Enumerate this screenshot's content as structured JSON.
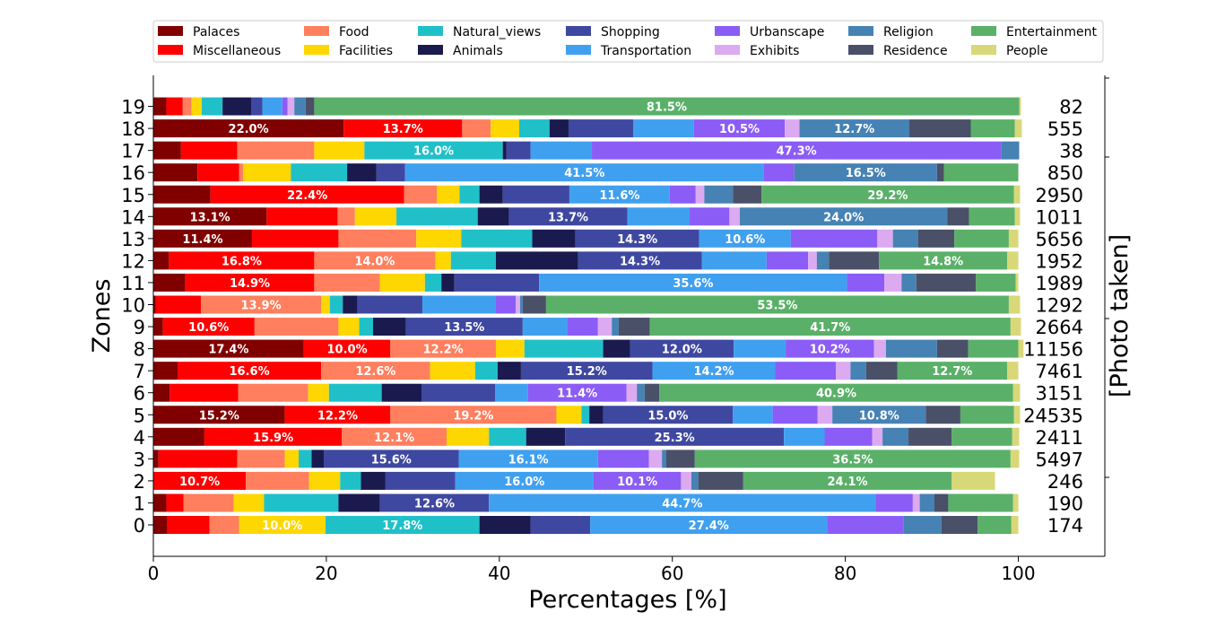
{
  "chart_data": {
    "type": "bar",
    "orientation": "horizontal",
    "stacked": true,
    "xlabel": "Percentages [%]",
    "ylabel": "Zones",
    "right_label": "[Photo taken]",
    "xlim": [
      0,
      110
    ],
    "x_ticks": [
      "0",
      "20",
      "40",
      "60",
      "80",
      "100"
    ],
    "categories": [
      "0",
      "1",
      "2",
      "3",
      "4",
      "5",
      "6",
      "7",
      "8",
      "9",
      "10",
      "11",
      "12",
      "13",
      "14",
      "15",
      "16",
      "17",
      "18",
      "19"
    ],
    "counts": [
      "174",
      "190",
      "246",
      "5497",
      "2411",
      "24535",
      "3151",
      "7461",
      "11156",
      "2664",
      "1292",
      "1989",
      "1952",
      "5656",
      "1011",
      "2950",
      "850",
      "38",
      "555",
      "82"
    ],
    "legend_position": "top",
    "series": [
      {
        "name": "Palaces",
        "color": "#800000",
        "values": [
          1.6,
          1.5,
          0,
          0.6,
          5.9,
          15.2,
          1.9,
          2.8,
          17.4,
          1.1,
          0.3,
          3.7,
          1.8,
          11.4,
          13.1,
          6.6,
          5.1,
          3.2,
          22.0,
          1.5
        ]
      },
      {
        "name": "Miscellaneous",
        "color": "#ff0000",
        "values": [
          4.9,
          2.0,
          10.7,
          9.1,
          15.9,
          12.2,
          7.9,
          16.6,
          10.0,
          10.6,
          5.2,
          14.9,
          16.8,
          10.0,
          8.2,
          22.4,
          4.8,
          6.5,
          13.7,
          1.9
        ]
      },
      {
        "name": "Food",
        "color": "#ff7f5e",
        "values": [
          3.4,
          5.8,
          7.3,
          5.5,
          12.1,
          19.2,
          8.1,
          12.6,
          12.2,
          9.7,
          13.9,
          7.6,
          14.0,
          9.0,
          2.0,
          3.8,
          0.5,
          8.9,
          3.3,
          1.0
        ]
      },
      {
        "name": "Facilities",
        "color": "#ffd700",
        "values": [
          10.0,
          3.5,
          3.6,
          1.6,
          4.9,
          2.9,
          2.4,
          5.2,
          3.3,
          2.4,
          1.0,
          5.2,
          1.8,
          5.2,
          4.8,
          2.6,
          5.5,
          5.8,
          3.3,
          1.2
        ]
      },
      {
        "name": "Natural_views",
        "color": "#20c0c8",
        "values": [
          17.8,
          8.6,
          2.4,
          1.5,
          4.3,
          0.9,
          6.1,
          2.6,
          9.1,
          1.6,
          1.5,
          1.9,
          5.2,
          8.2,
          9.4,
          2.3,
          6.5,
          16.0,
          3.5,
          2.4
        ]
      },
      {
        "name": "Animals",
        "color": "#1a1a4e",
        "values": [
          5.9,
          4.8,
          2.8,
          1.4,
          4.5,
          1.6,
          4.6,
          2.7,
          3.1,
          3.8,
          1.7,
          1.5,
          9.5,
          5.0,
          3.6,
          2.7,
          3.4,
          0.4,
          2.2,
          3.3
        ]
      },
      {
        "name": "Shopping",
        "color": "#3f48a0",
        "values": [
          6.9,
          12.6,
          8.1,
          15.6,
          25.3,
          15.0,
          8.5,
          15.2,
          12.0,
          13.5,
          7.5,
          9.8,
          14.3,
          14.3,
          13.7,
          7.7,
          3.3,
          2.8,
          7.5,
          1.3
        ]
      },
      {
        "name": "Transportation",
        "color": "#40a0f0",
        "values": [
          27.4,
          44.7,
          16.0,
          16.1,
          4.7,
          4.6,
          3.8,
          14.2,
          6.0,
          5.2,
          8.5,
          35.6,
          7.5,
          10.6,
          7.2,
          11.6,
          41.5,
          7.1,
          7.0,
          2.3
        ]
      },
      {
        "name": "Urbanscape",
        "color": "#8b5cf6",
        "values": [
          8.8,
          4.3,
          10.1,
          5.9,
          5.5,
          5.2,
          11.4,
          7.0,
          10.2,
          3.5,
          2.3,
          4.3,
          4.8,
          10.0,
          4.6,
          3.0,
          3.5,
          47.3,
          10.5,
          0.6
        ]
      },
      {
        "name": "Exhibits",
        "color": "#dcaaf0",
        "values": [
          0,
          0.8,
          1.2,
          1.5,
          1.2,
          1.7,
          1.2,
          1.7,
          1.4,
          1.6,
          0.5,
          2.0,
          1.0,
          1.8,
          1.2,
          1.0,
          0,
          0,
          1.7,
          0.8
        ]
      },
      {
        "name": "Religion",
        "color": "#4682b4",
        "values": [
          4.4,
          1.7,
          0.8,
          0.5,
          3.0,
          10.8,
          0.9,
          1.8,
          5.9,
          0.8,
          0.3,
          1.7,
          1.4,
          2.9,
          24.0,
          3.3,
          16.5,
          2.1,
          12.7,
          1.3
        ]
      },
      {
        "name": "Residence",
        "color": "#4a5068",
        "values": [
          4.2,
          1.6,
          5.2,
          3.3,
          5.0,
          4.0,
          1.7,
          3.6,
          3.6,
          3.6,
          2.7,
          6.9,
          5.8,
          4.2,
          2.5,
          3.3,
          0.8,
          0,
          7.1,
          1.0
        ]
      },
      {
        "name": "Entertainment",
        "color": "#5ab068",
        "values": [
          3.9,
          7.5,
          24.1,
          36.5,
          7.0,
          6.2,
          40.9,
          12.7,
          5.8,
          41.7,
          53.5,
          4.6,
          14.8,
          6.3,
          5.3,
          29.2,
          8.6,
          0,
          5.1,
          81.5
        ]
      },
      {
        "name": "People",
        "color": "#d8d878",
        "values": [
          0.8,
          0.6,
          5.0,
          1.0,
          0.8,
          0.7,
          0.8,
          1.3,
          0.6,
          1.2,
          1.3,
          0.3,
          1.3,
          1.1,
          0.6,
          0.7,
          0,
          0,
          0.8,
          0.2
        ]
      }
    ],
    "data_labels": [
      {
        "row": "0",
        "series": "Facilities",
        "text": "10.0%"
      },
      {
        "row": "0",
        "series": "Natural_views",
        "text": "17.8%"
      },
      {
        "row": "0",
        "series": "Transportation",
        "text": "27.4%"
      },
      {
        "row": "1",
        "series": "Shopping",
        "text": "12.6%"
      },
      {
        "row": "1",
        "series": "Transportation",
        "text": "44.7%"
      },
      {
        "row": "2",
        "series": "Miscellaneous",
        "text": "10.7%"
      },
      {
        "row": "2",
        "series": "Transportation",
        "text": "16.0%"
      },
      {
        "row": "2",
        "series": "Urbanscape",
        "text": "10.1%"
      },
      {
        "row": "2",
        "series": "Entertainment",
        "text": "24.1%"
      },
      {
        "row": "3",
        "series": "Shopping",
        "text": "15.6%"
      },
      {
        "row": "3",
        "series": "Transportation",
        "text": "16.1%"
      },
      {
        "row": "3",
        "series": "Entertainment",
        "text": "36.5%"
      },
      {
        "row": "4",
        "series": "Miscellaneous",
        "text": "15.9%"
      },
      {
        "row": "4",
        "series": "Food",
        "text": "12.1%"
      },
      {
        "row": "4",
        "series": "Shopping",
        "text": "25.3%"
      },
      {
        "row": "5",
        "series": "Palaces",
        "text": "15.2%"
      },
      {
        "row": "5",
        "series": "Miscellaneous",
        "text": "12.2%"
      },
      {
        "row": "5",
        "series": "Food",
        "text": "19.2%"
      },
      {
        "row": "5",
        "series": "Shopping",
        "text": "15.0%"
      },
      {
        "row": "5",
        "series": "Religion",
        "text": "10.8%"
      },
      {
        "row": "6",
        "series": "Urbanscape",
        "text": "11.4%"
      },
      {
        "row": "6",
        "series": "Entertainment",
        "text": "40.9%"
      },
      {
        "row": "7",
        "series": "Miscellaneous",
        "text": "16.6%"
      },
      {
        "row": "7",
        "series": "Food",
        "text": "12.6%"
      },
      {
        "row": "7",
        "series": "Shopping",
        "text": "15.2%"
      },
      {
        "row": "7",
        "series": "Transportation",
        "text": "14.2%"
      },
      {
        "row": "7",
        "series": "Entertainment",
        "text": "12.7%"
      },
      {
        "row": "8",
        "series": "Palaces",
        "text": "17.4%"
      },
      {
        "row": "8",
        "series": "Miscellaneous",
        "text": "10.0%"
      },
      {
        "row": "8",
        "series": "Food",
        "text": "12.2%"
      },
      {
        "row": "8",
        "series": "Shopping",
        "text": "12.0%"
      },
      {
        "row": "8",
        "series": "Urbanscape",
        "text": "10.2%"
      },
      {
        "row": "9",
        "series": "Miscellaneous",
        "text": "10.6%"
      },
      {
        "row": "9",
        "series": "Shopping",
        "text": "13.5%"
      },
      {
        "row": "9",
        "series": "Entertainment",
        "text": "41.7%"
      },
      {
        "row": "10",
        "series": "Food",
        "text": "13.9%"
      },
      {
        "row": "10",
        "series": "Entertainment",
        "text": "53.5%"
      },
      {
        "row": "11",
        "series": "Miscellaneous",
        "text": "14.9%"
      },
      {
        "row": "11",
        "series": "Transportation",
        "text": "35.6%"
      },
      {
        "row": "12",
        "series": "Miscellaneous",
        "text": "16.8%"
      },
      {
        "row": "12",
        "series": "Food",
        "text": "14.0%"
      },
      {
        "row": "12",
        "series": "Shopping",
        "text": "14.3%"
      },
      {
        "row": "12",
        "series": "Entertainment",
        "text": "14.8%"
      },
      {
        "row": "13",
        "series": "Palaces",
        "text": "11.4%"
      },
      {
        "row": "13",
        "series": "Shopping",
        "text": "14.3%"
      },
      {
        "row": "13",
        "series": "Transportation",
        "text": "10.6%"
      },
      {
        "row": "14",
        "series": "Palaces",
        "text": "13.1%"
      },
      {
        "row": "14",
        "series": "Shopping",
        "text": "13.7%"
      },
      {
        "row": "14",
        "series": "Religion",
        "text": "24.0%"
      },
      {
        "row": "15",
        "series": "Miscellaneous",
        "text": "22.4%"
      },
      {
        "row": "15",
        "series": "Transportation",
        "text": "11.6%"
      },
      {
        "row": "15",
        "series": "Entertainment",
        "text": "29.2%"
      },
      {
        "row": "16",
        "series": "Transportation",
        "text": "41.5%"
      },
      {
        "row": "16",
        "series": "Religion",
        "text": "16.5%"
      },
      {
        "row": "17",
        "series": "Natural_views",
        "text": "16.0%"
      },
      {
        "row": "17",
        "series": "Urbanscape",
        "text": "47.3%"
      },
      {
        "row": "18",
        "series": "Palaces",
        "text": "22.0%"
      },
      {
        "row": "18",
        "series": "Miscellaneous",
        "text": "13.7%"
      },
      {
        "row": "18",
        "series": "Urbanscape",
        "text": "10.5%"
      },
      {
        "row": "18",
        "series": "Religion",
        "text": "12.7%"
      },
      {
        "row": "19",
        "series": "Entertainment",
        "text": "81.5%"
      }
    ]
  }
}
